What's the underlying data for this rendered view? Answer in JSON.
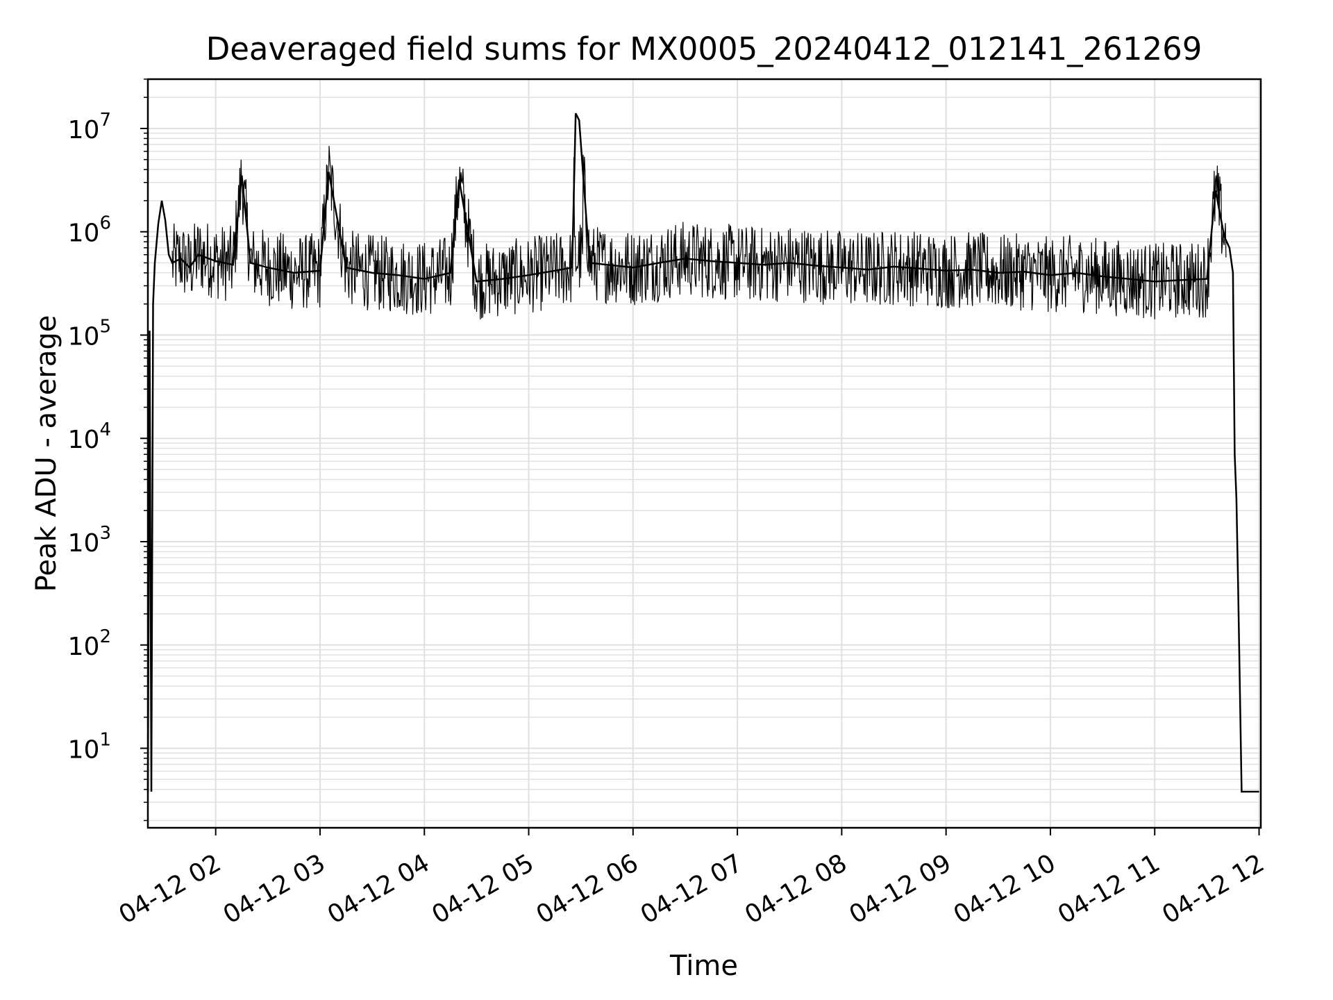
{
  "chart_data": {
    "type": "line",
    "title": "Deaveraged field sums for MX0005_20240412_012141_261269",
    "xlabel": "Time",
    "ylabel": "Peak ADU - average",
    "yscale": "log",
    "ylim": [
      1.7,
      30000000
    ],
    "xlim": [
      "04-12 01:21",
      "04-12 12:01"
    ],
    "grid": true,
    "line_color": "#000000",
    "grid_color": "#e0e0e0",
    "x_ticks": [
      {
        "time": "04-12 02:00",
        "label": "04-12 02"
      },
      {
        "time": "04-12 03:00",
        "label": "04-12 03"
      },
      {
        "time": "04-12 04:00",
        "label": "04-12 04"
      },
      {
        "time": "04-12 05:00",
        "label": "04-12 05"
      },
      {
        "time": "04-12 06:00",
        "label": "04-12 06"
      },
      {
        "time": "04-12 07:00",
        "label": "04-12 07"
      },
      {
        "time": "04-12 08:00",
        "label": "04-12 08"
      },
      {
        "time": "04-12 09:00",
        "label": "04-12 09"
      },
      {
        "time": "04-12 10:00",
        "label": "04-12 10"
      },
      {
        "time": "04-12 11:00",
        "label": "04-12 11"
      },
      {
        "time": "04-12 12:00",
        "label": "04-12 12"
      }
    ],
    "y_ticks": [
      {
        "value": 10,
        "base": "10",
        "exp": "1"
      },
      {
        "value": 100,
        "base": "10",
        "exp": "2"
      },
      {
        "value": 1000,
        "base": "10",
        "exp": "3"
      },
      {
        "value": 10000,
        "base": "10",
        "exp": "4"
      },
      {
        "value": 100000,
        "base": "10",
        "exp": "5"
      },
      {
        "value": 1000000,
        "base": "10",
        "exp": "6"
      },
      {
        "value": 10000000,
        "base": "10",
        "exp": "7"
      }
    ],
    "series": [
      {
        "x": [
          "04-12 01:21",
          "04-12 01:22",
          "04-12 01:23",
          "04-12 01:24",
          "04-12 01:25",
          "04-12 01:27",
          "04-12 01:29",
          "04-12 01:31",
          "04-12 01:33",
          "04-12 01:35",
          "04-12 01:40",
          "04-12 01:45",
          "04-12 01:50",
          "04-12 02:00",
          "04-12 02:10",
          "04-12 02:15",
          "04-12 02:20",
          "04-12 02:30",
          "04-12 02:45",
          "04-12 03:00",
          "04-12 03:05",
          "04-12 03:15",
          "04-12 03:30",
          "04-12 03:45",
          "04-12 04:00",
          "04-12 04:15",
          "04-12 04:20",
          "04-12 04:30",
          "04-12 04:45",
          "04-12 05:00",
          "04-12 05:15",
          "04-12 05:25",
          "04-12 05:27",
          "04-12 05:29",
          "04-12 05:35",
          "04-12 05:45",
          "04-12 06:00",
          "04-12 06:15",
          "04-12 06:30",
          "04-12 06:45",
          "04-12 07:00",
          "04-12 07:15",
          "04-12 07:30",
          "04-12 07:45",
          "04-12 08:00",
          "04-12 08:15",
          "04-12 08:30",
          "04-12 08:45",
          "04-12 09:00",
          "04-12 09:15",
          "04-12 09:30",
          "04-12 09:45",
          "04-12 10:00",
          "04-12 10:15",
          "04-12 10:30",
          "04-12 10:45",
          "04-12 11:00",
          "04-12 11:15",
          "04-12 11:30",
          "04-12 11:35",
          "04-12 11:40",
          "04-12 11:43",
          "04-12 11:45",
          "04-12 11:46",
          "04-12 11:47",
          "04-12 11:48",
          "04-12 11:50",
          "04-12 12:00"
        ],
        "y": [
          3.8,
          110000,
          3.8,
          200000,
          500000,
          1200000,
          2000000,
          1300000,
          600000,
          500000,
          550000,
          450000,
          600000,
          520000,
          480000,
          3500000,
          500000,
          450000,
          400000,
          420000,
          3800000,
          450000,
          400000,
          380000,
          350000,
          400000,
          3200000,
          330000,
          350000,
          380000,
          420000,
          450000,
          14000000,
          12000000,
          500000,
          480000,
          450000,
          500000,
          550000,
          520000,
          500000,
          480000,
          500000,
          470000,
          450000,
          430000,
          460000,
          440000,
          420000,
          430000,
          400000,
          410000,
          380000,
          400000,
          370000,
          350000,
          330000,
          340000,
          350000,
          2500000,
          900000,
          700000,
          400000,
          7000,
          2600,
          350,
          3.8,
          3.8
        ]
      }
    ]
  }
}
